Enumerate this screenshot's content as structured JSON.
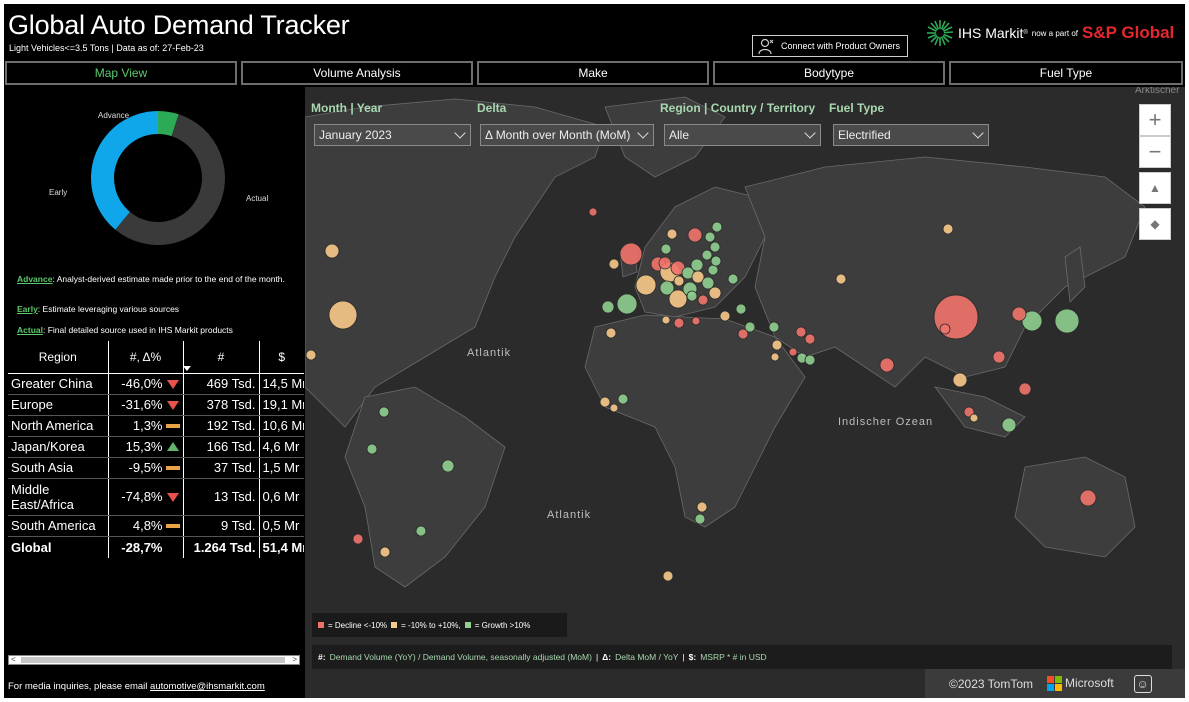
{
  "header": {
    "title": "Global Auto Demand Tracker",
    "subtitle": "Light Vehicles<=3.5 Tons | Data as of: 27-Feb-23",
    "connect_label": "Connect with Product Owners",
    "brand_ihs": "IHS Markit",
    "brand_sup": "®",
    "brand_part": "now a part of",
    "brand_spg": "S&P Global"
  },
  "tabs": [
    "Map View",
    "Volume Analysis",
    "Make",
    "Bodytype",
    "Fuel Type"
  ],
  "donut": {
    "labels": {
      "advance": "Advance",
      "early": "Early",
      "actual": "Actual"
    },
    "shares": {
      "actual": 0.56,
      "early": 0.39,
      "advance": 0.05
    },
    "colors": {
      "actual": "#3a3a3a",
      "early": "#10a6ea",
      "advance": "#2daa55"
    }
  },
  "legend_notes": [
    {
      "term": "Advance",
      "text": ": Analyst-derived estimate made prior to the end of the month."
    },
    {
      "term": "Early",
      "text": ": Estimate leveraging various sources"
    },
    {
      "term": "Actual",
      "text": ": Final detailed source used in IHS Markit products"
    }
  ],
  "table": {
    "headers": [
      "Region",
      "#, Δ%",
      "#",
      "$"
    ],
    "rows": [
      {
        "region": "Greater China",
        "delta": "-46,0%",
        "trend": "down",
        "volume": "469 Tsd.",
        "value": "14,5 Mr"
      },
      {
        "region": "Europe",
        "delta": "-31,6%",
        "trend": "down",
        "volume": "378 Tsd.",
        "value": "19,1 Mr"
      },
      {
        "region": "North America",
        "delta": "1,3%",
        "trend": "flat",
        "volume": "192 Tsd.",
        "value": "10,6 Mr"
      },
      {
        "region": "Japan/Korea",
        "delta": "15,3%",
        "trend": "up",
        "volume": "166 Tsd.",
        "value": "4,6 Mr"
      },
      {
        "region": "South Asia",
        "delta": "-9,5%",
        "trend": "flat",
        "volume": "37 Tsd.",
        "value": "1,5 Mr"
      },
      {
        "region": "Middle East/Africa",
        "delta": "-74,8%",
        "trend": "down",
        "volume": "13 Tsd.",
        "value": "0,6 Mr"
      },
      {
        "region": "South America",
        "delta": "4,8%",
        "trend": "flat",
        "volume": "9 Tsd.",
        "value": "0,5 Mr"
      }
    ],
    "total": {
      "region": "Global",
      "delta": "-28,7%",
      "volume": "1.264 Tsd.",
      "value": "51,4 Mr"
    }
  },
  "footer": {
    "media_text": "For media inquiries, please email ",
    "media_email": "automotive@ihsmarkit.com"
  },
  "filters": {
    "month_label": "Month | Year",
    "month_value": "January 2023",
    "delta_label": "Delta",
    "delta_value": "Δ Month over Month (MoM)",
    "region_label": "Region | Country / Territory",
    "region_value": "Alle",
    "fuel_label": "Fuel Type",
    "fuel_value": "Electrified"
  },
  "map": {
    "controls": [
      "+",
      "−",
      "▲",
      "◆"
    ],
    "top_right_label": "Arktischer",
    "oceans": [
      "Atlantik",
      "Atlantik",
      "Indischer Ozean"
    ],
    "legend": {
      "decline": "= Decline <-10%",
      "flat": "= -10% to +10%,",
      "growth": "= Growth >10%"
    },
    "footnote": {
      "hash": "#:",
      "hash_text": "Demand Volume (YoY) / Demand Volume, seasonally adjusted (MoM)",
      "sep1": "|",
      "delta": "Δ:",
      "delta_text": "Delta MoM / YoY",
      "sep2": "|",
      "dollar": "$:",
      "dollar_text": "MSRP * # in USD"
    },
    "copyright": "©2023 TomTom",
    "microsoft": "Microsoft",
    "colors": {
      "decline": "#f0736a",
      "flat": "#f7c98a",
      "growth": "#8fcf8f"
    }
  }
}
